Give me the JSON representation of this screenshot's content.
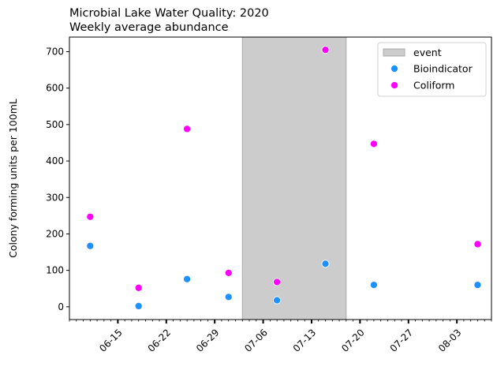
{
  "chart_data": {
    "type": "scatter",
    "title": "Microbial Lake Water Quality: 2020",
    "subtitle": "Weekly average abundance",
    "xlabel": "",
    "ylabel": "Colony forming units per 100mL",
    "x_type": "date",
    "xlim": [
      "2020-06-08",
      "2020-08-08"
    ],
    "ylim": [
      -35,
      740
    ],
    "x_tick_dates": [
      "2020-06-15",
      "2020-06-22",
      "2020-06-29",
      "2020-07-06",
      "2020-07-13",
      "2020-07-20",
      "2020-07-27",
      "2020-08-03"
    ],
    "x_tick_labels": [
      "06-15",
      "06-22",
      "06-29",
      "07-06",
      "07-13",
      "07-20",
      "07-27",
      "08-03"
    ],
    "y_ticks": [
      0,
      100,
      200,
      300,
      400,
      500,
      600,
      700
    ],
    "grid": false,
    "legend_position": "top-right",
    "event_span": {
      "label": "event",
      "start": "2020-07-03",
      "end": "2020-07-18",
      "color": "#cccccc"
    },
    "series": [
      {
        "name": "Bioindicator",
        "color": "#1e90ff",
        "points": [
          {
            "x": "2020-06-11",
            "y": 167
          },
          {
            "x": "2020-06-18",
            "y": 2
          },
          {
            "x": "2020-06-25",
            "y": 76
          },
          {
            "x": "2020-07-01",
            "y": 27
          },
          {
            "x": "2020-07-08",
            "y": 18
          },
          {
            "x": "2020-07-15",
            "y": 118
          },
          {
            "x": "2020-07-22",
            "y": 60
          },
          {
            "x": "2020-08-06",
            "y": 60
          }
        ]
      },
      {
        "name": "Coliform",
        "color": "#ff00ff",
        "points": [
          {
            "x": "2020-06-11",
            "y": 247
          },
          {
            "x": "2020-06-18",
            "y": 52
          },
          {
            "x": "2020-06-25",
            "y": 488
          },
          {
            "x": "2020-07-01",
            "y": 93
          },
          {
            "x": "2020-07-08",
            "y": 68
          },
          {
            "x": "2020-07-15",
            "y": 705
          },
          {
            "x": "2020-07-22",
            "y": 447
          },
          {
            "x": "2020-08-06",
            "y": 172
          }
        ]
      }
    ]
  }
}
